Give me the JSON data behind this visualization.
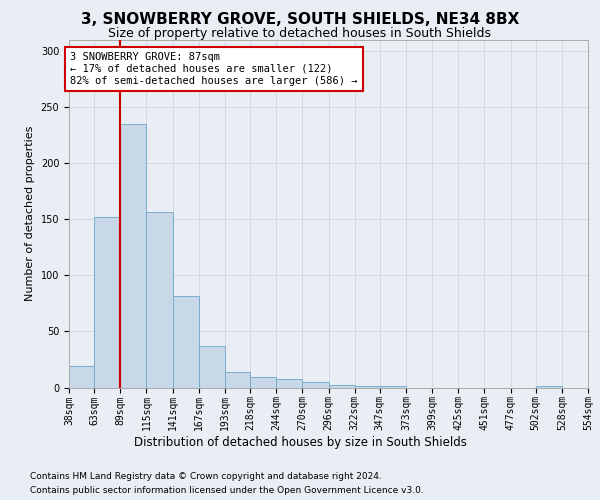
{
  "title": "3, SNOWBERRY GROVE, SOUTH SHIELDS, NE34 8BX",
  "subtitle": "Size of property relative to detached houses in South Shields",
  "xlabel": "Distribution of detached houses by size in South Shields",
  "ylabel": "Number of detached properties",
  "footer_line1": "Contains HM Land Registry data © Crown copyright and database right 2024.",
  "footer_line2": "Contains public sector information licensed under the Open Government Licence v3.0.",
  "annotation_line1": "3 SNOWBERRY GROVE: 87sqm",
  "annotation_line2": "← 17% of detached houses are smaller (122)",
  "annotation_line3": "82% of semi-detached houses are larger (586) →",
  "bin_edges": [
    38,
    63,
    89,
    115,
    141,
    167,
    193,
    218,
    244,
    270,
    296,
    322,
    347,
    373,
    399,
    425,
    451,
    477,
    502,
    528,
    554
  ],
  "bin_labels": [
    "38sqm",
    "63sqm",
    "89sqm",
    "115sqm",
    "141sqm",
    "167sqm",
    "193sqm",
    "218sqm",
    "244sqm",
    "270sqm",
    "296sqm",
    "322sqm",
    "347sqm",
    "373sqm",
    "399sqm",
    "425sqm",
    "451sqm",
    "477sqm",
    "502sqm",
    "528sqm",
    "554sqm"
  ],
  "bar_heights": [
    19,
    152,
    235,
    157,
    82,
    37,
    14,
    9,
    8,
    5,
    2,
    1,
    1,
    0,
    0,
    0,
    0,
    0,
    1,
    0,
    1
  ],
  "bar_color": "#c8d8e8",
  "bar_edgecolor": "#7aadcb",
  "vline_color": "#cc0000",
  "vline_x": 89,
  "ylim": [
    0,
    310
  ],
  "yticks": [
    0,
    50,
    100,
    150,
    200,
    250,
    300
  ],
  "grid_color": "#d0d8e0",
  "background_color": "#e8eef4",
  "axes_bg_color": "#e8eef4",
  "title_fontsize": 11,
  "subtitle_fontsize": 9,
  "xlabel_fontsize": 8.5,
  "ylabel_fontsize": 8,
  "tick_fontsize": 7,
  "annotation_fontsize": 7.5,
  "footer_fontsize": 6.5
}
